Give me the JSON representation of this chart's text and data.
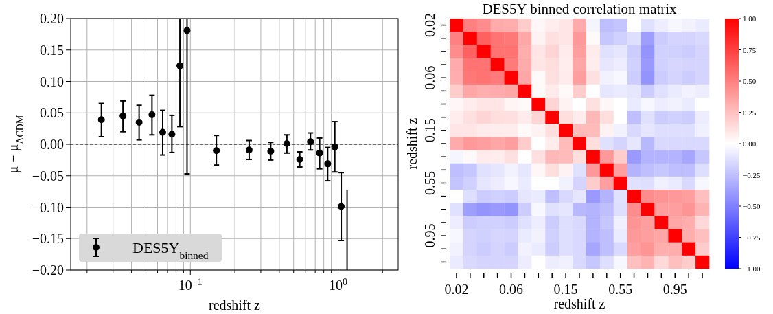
{
  "chart_data": [
    {
      "type": "scatter",
      "xlabel": "redshift z",
      "ylabel": "μ − μ$_{ΛCDM}$",
      "log": "x",
      "xlim": [
        0.0155,
        2.55
      ],
      "xticks": [
        {
          "value": 0.02,
          "label": null
        },
        {
          "value": 0.03,
          "label": null
        },
        {
          "value": 0.04,
          "label": null
        },
        {
          "value": 0.05,
          "label": null
        },
        {
          "value": 0.06,
          "label": null
        },
        {
          "value": 0.07,
          "label": null
        },
        {
          "value": 0.08,
          "label": null
        },
        {
          "value": 0.09,
          "label": null
        },
        {
          "value": 0.1,
          "label": "10$^{−1}$"
        },
        {
          "value": 0.2,
          "label": null
        },
        {
          "value": 0.3,
          "label": null
        },
        {
          "value": 0.4,
          "label": null
        },
        {
          "value": 0.5,
          "label": null
        },
        {
          "value": 0.6,
          "label": null
        },
        {
          "value": 0.7,
          "label": null
        },
        {
          "value": 0.8,
          "label": null
        },
        {
          "value": 0.9,
          "label": null
        },
        {
          "value": 1,
          "label": "10$^{0}$"
        },
        {
          "value": 2,
          "label": null
        }
      ],
      "ylim": [
        -0.2,
        0.2
      ],
      "yticks": [
        {
          "value": -0.2,
          "label": "−0.20"
        },
        {
          "value": -0.15,
          "label": "−0.15"
        },
        {
          "value": -0.1,
          "label": "−0.10"
        },
        {
          "value": -0.05,
          "label": "−0.05"
        },
        {
          "value": 0,
          "label": "0.00"
        },
        {
          "value": 0.05,
          "label": "0.05"
        },
        {
          "value": 0.1,
          "label": "0.10"
        },
        {
          "value": 0.15,
          "label": "0.15"
        },
        {
          "value": 0.2,
          "label": "0.20"
        }
      ],
      "grid": true,
      "legend": "bottom left",
      "ref_lines": [
        {
          "axis": "y",
          "value": 0,
          "color": "#000000",
          "line_style": "dashed"
        }
      ],
      "series": [
        {
          "name": "DES5Y$_{binned}$",
          "color": "#000000",
          "marker": "circle",
          "x": [
            0.025,
            0.035,
            0.045,
            0.055,
            0.065,
            0.075,
            0.085,
            0.095,
            0.15,
            0.25,
            0.35,
            0.45,
            0.55,
            0.65,
            0.75,
            0.85,
            0.95,
            1.05
          ],
          "values": [
            0.039,
            0.045,
            0.035,
            0.047,
            0.019,
            0.016,
            0.125,
            0.181,
            -0.01,
            -0.009,
            -0.011,
            0.001,
            -0.024,
            0.004,
            -0.014,
            -0.031,
            -0.004,
            -0.099
          ],
          "errors": [
            [
              0.012,
              0.065
            ],
            [
              0.02,
              0.069
            ],
            [
              0.007,
              0.062
            ],
            [
              0.015,
              0.078
            ],
            [
              -0.017,
              0.054
            ],
            [
              -0.013,
              0.046
            ],
            [
              0.028,
              0.2
            ],
            [
              -0.047,
              0.2
            ],
            [
              -0.033,
              0.014
            ],
            [
              -0.024,
              0.006
            ],
            [
              -0.025,
              0.003
            ],
            [
              -0.014,
              0.015
            ],
            [
              -0.036,
              -0.012
            ],
            [
              -0.009,
              0.018
            ],
            [
              -0.039,
              0.01
            ],
            [
              -0.058,
              -0.005
            ],
            [
              -0.044,
              0.036
            ],
            [
              -0.153,
              -0.045
            ]
          ]
        },
        {
          "type": "line",
          "color": "#000000",
          "marker": "none",
          "x": [
            1.15,
            1.15
          ],
          "values": [
            -0.073,
            -0.2
          ]
        }
      ]
    },
    {
      "type": "heatmap",
      "title": "DES5Y binned correlation matrix",
      "xlabel": "redshift z",
      "ylabel": "redshift z",
      "categories": [
        "0.02",
        null,
        null,
        null,
        "0.06",
        null,
        null,
        null,
        "0.15",
        null,
        null,
        null,
        "0.55",
        null,
        null,
        null,
        "0.95",
        null,
        null
      ],
      "y_categories": [
        "0.02",
        null,
        null,
        null,
        "0.06",
        null,
        null,
        null,
        "0.15",
        null,
        null,
        null,
        "0.55",
        null,
        null,
        null,
        "0.95",
        null,
        null
      ],
      "cells": [
        [
          1,
          0.5,
          0.45,
          0.33,
          0.32,
          0.2,
          0.03,
          0.07,
          0.1,
          0.33,
          -0.04,
          -0.25,
          -0.23,
          0.0,
          -0.12,
          -0.07,
          -0.03,
          -0.05,
          -0.08
        ],
        [
          0.5,
          1,
          0.62,
          0.55,
          0.53,
          0.35,
          0.05,
          0.12,
          0.1,
          0.4,
          0.02,
          -0.22,
          -0.18,
          -0.13,
          -0.38,
          -0.2,
          -0.17,
          -0.17,
          -0.15
        ],
        [
          0.45,
          0.62,
          1,
          0.55,
          0.55,
          0.32,
          0.1,
          0.17,
          0.08,
          0.38,
          0.08,
          -0.12,
          -0.1,
          -0.2,
          -0.42,
          -0.18,
          -0.18,
          -0.2,
          -0.17
        ],
        [
          0.33,
          0.55,
          0.55,
          1,
          0.52,
          0.33,
          0.1,
          0.13,
          0.07,
          0.35,
          0.07,
          -0.1,
          -0.07,
          -0.18,
          -0.4,
          -0.18,
          -0.16,
          -0.17,
          -0.17
        ],
        [
          0.32,
          0.53,
          0.55,
          0.52,
          1,
          0.35,
          0.02,
          0.12,
          0.08,
          0.38,
          0.12,
          -0.05,
          -0.03,
          -0.2,
          -0.42,
          -0.2,
          -0.17,
          -0.2,
          -0.17
        ],
        [
          0.2,
          0.35,
          0.32,
          0.33,
          0.35,
          1,
          0.02,
          0.08,
          0.02,
          0.2,
          0.0,
          -0.1,
          -0.08,
          -0.1,
          -0.2,
          -0.12,
          -0.08,
          -0.05,
          -0.07
        ],
        [
          0.03,
          0.07,
          0.1,
          0.1,
          0.04,
          0.02,
          1,
          0.17,
          0.05,
          0.0,
          0.12,
          0.03,
          0.0,
          -0.08,
          -0.03,
          -0.07,
          -0.05,
          -0.08,
          0.0
        ],
        [
          0.07,
          0.12,
          0.17,
          0.13,
          0.12,
          0.08,
          0.17,
          1,
          0.13,
          0.07,
          0.28,
          0.13,
          0.0,
          -0.25,
          -0.12,
          -0.2,
          -0.18,
          -0.2,
          -0.07
        ],
        [
          0.1,
          0.1,
          0.08,
          0.07,
          0.07,
          0.02,
          0.05,
          0.13,
          1,
          0.27,
          0.27,
          0.05,
          -0.05,
          -0.15,
          -0.1,
          -0.13,
          -0.13,
          -0.13,
          -0.06
        ],
        [
          0.33,
          0.4,
          0.38,
          0.35,
          0.38,
          0.2,
          0.0,
          0.07,
          0.27,
          1,
          0.13,
          -0.12,
          -0.17,
          -0.1,
          -0.28,
          -0.15,
          -0.15,
          -0.15,
          -0.15
        ],
        [
          -0.04,
          0.02,
          0.08,
          0.07,
          0.12,
          0.0,
          0.12,
          0.28,
          0.27,
          0.13,
          1,
          0.4,
          0.2,
          -0.4,
          -0.3,
          -0.3,
          -0.3,
          -0.35,
          -0.22
        ],
        [
          -0.25,
          -0.22,
          -0.12,
          -0.1,
          -0.05,
          -0.1,
          0.03,
          0.13,
          0.05,
          -0.12,
          0.4,
          1,
          0.38,
          -0.3,
          -0.25,
          -0.22,
          -0.25,
          -0.25,
          -0.13
        ],
        [
          -0.23,
          -0.18,
          -0.1,
          -0.07,
          -0.03,
          -0.08,
          0.0,
          0.0,
          -0.05,
          -0.17,
          0.2,
          0.38,
          1,
          -0.12,
          -0.13,
          -0.06,
          -0.08,
          -0.15,
          -0.03
        ],
        [
          0.0,
          -0.13,
          -0.2,
          -0.18,
          -0.2,
          -0.1,
          -0.08,
          -0.25,
          -0.15,
          -0.1,
          -0.4,
          -0.3,
          -0.12,
          1,
          0.45,
          0.42,
          0.4,
          0.38,
          0.25
        ],
        [
          -0.12,
          -0.38,
          -0.42,
          -0.4,
          -0.42,
          -0.2,
          -0.03,
          -0.12,
          -0.1,
          -0.28,
          -0.3,
          -0.25,
          -0.13,
          0.45,
          1,
          0.38,
          0.38,
          0.42,
          0.3
        ],
        [
          -0.07,
          -0.2,
          -0.18,
          -0.18,
          -0.2,
          -0.12,
          -0.07,
          -0.2,
          -0.13,
          -0.15,
          -0.3,
          -0.22,
          -0.06,
          0.42,
          0.38,
          1,
          0.35,
          0.32,
          0.15
        ],
        [
          -0.03,
          -0.17,
          -0.18,
          -0.16,
          -0.17,
          -0.08,
          -0.05,
          -0.18,
          -0.13,
          -0.15,
          -0.3,
          -0.25,
          -0.08,
          0.4,
          0.38,
          0.35,
          1,
          0.32,
          0.25
        ],
        [
          -0.05,
          -0.17,
          -0.2,
          -0.17,
          -0.2,
          -0.05,
          -0.08,
          -0.2,
          -0.13,
          -0.15,
          -0.35,
          -0.25,
          -0.15,
          0.38,
          0.42,
          0.32,
          0.32,
          1,
          0.2
        ],
        [
          -0.08,
          -0.15,
          -0.17,
          -0.17,
          -0.17,
          -0.07,
          0.0,
          -0.07,
          -0.06,
          -0.15,
          -0.22,
          -0.13,
          -0.03,
          0.25,
          0.3,
          0.15,
          0.25,
          0.2,
          1
        ]
      ],
      "clim": [
        -1,
        1
      ],
      "cticks": [
        {
          "value": -1,
          "label": "−1.00"
        },
        {
          "value": -0.75,
          "label": "−0.75"
        },
        {
          "value": -0.5,
          "label": "−0.50"
        },
        {
          "value": -0.25,
          "label": "−0.25"
        },
        {
          "value": 0,
          "label": "0.00"
        },
        {
          "value": 0.25,
          "label": "0.25"
        },
        {
          "value": 0.5,
          "label": "0.50"
        },
        {
          "value": 0.75,
          "label": "0.75"
        },
        {
          "value": 1,
          "label": "1.00"
        }
      ]
    }
  ]
}
